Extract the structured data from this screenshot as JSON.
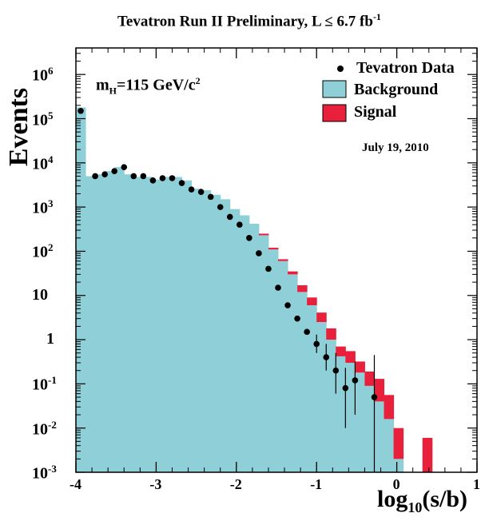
{
  "chart_data": {
    "type": "bar",
    "title_main": "Tevatron Run II Preliminary, L ≤ 6.7 fb",
    "title_sup": "-1",
    "ylabel": "Events",
    "xlabel_main": "log",
    "xlabel_sub": "10",
    "xlabel_tail": "(s/b)",
    "xlim": [
      -4,
      1
    ],
    "ylim_log10": [
      -3,
      6.6
    ],
    "log_y": true,
    "annotation": {
      "m": "m",
      "sub": "H",
      "eq": "=115 GeV/c",
      "sup": "2"
    },
    "date": "July 19, 2010",
    "legend": {
      "placement": "top-right",
      "entries": [
        {
          "label": "Tevatron Data",
          "kind": "marker"
        },
        {
          "label": "Background",
          "kind": "fill",
          "color": "#8ecfd8"
        },
        {
          "label": "Signal",
          "kind": "fill",
          "color": "#e8203c"
        }
      ]
    },
    "x_ticks": [
      -4,
      -3,
      -2,
      -1,
      0,
      1
    ],
    "x_tick_labels": [
      "-4",
      "-3",
      "-2",
      "-1",
      "0",
      "1"
    ],
    "y_ticks": [
      {
        "base": "10",
        "sup": "6",
        "value": 1000000
      },
      {
        "base": "10",
        "sup": "5",
        "value": 100000
      },
      {
        "base": "10",
        "sup": "4",
        "value": 10000
      },
      {
        "base": "10",
        "sup": "3",
        "value": 1000
      },
      {
        "base": "10",
        "sup": "2",
        "value": 100
      },
      {
        "base": "10",
        "sup": "",
        "value": 10
      },
      {
        "base": "1",
        "sup": "",
        "value": 1
      },
      {
        "base": "10",
        "sup": "-1",
        "value": 0.1
      },
      {
        "base": "10",
        "sup": "-2",
        "value": 0.01
      },
      {
        "base": "10",
        "sup": "-3",
        "value": 0.001
      }
    ],
    "bin_edges": [
      -4.0,
      -3.88,
      -3.76,
      -3.64,
      -3.52,
      -3.4,
      -3.28,
      -3.16,
      -3.04,
      -2.92,
      -2.8,
      -2.68,
      -2.56,
      -2.44,
      -2.32,
      -2.2,
      -2.08,
      -1.96,
      -1.84,
      -1.72,
      -1.6,
      -1.48,
      -1.36,
      -1.24,
      -1.12,
      -1.0,
      -0.88,
      -0.76,
      -0.64,
      -0.52,
      -0.4,
      -0.28,
      -0.16,
      -0.04,
      0.08,
      0.2,
      0.32,
      0.44,
      0.56,
      0.68
    ],
    "series": [
      {
        "name": "Background",
        "color": "#8ecfd8",
        "values": [
          180000,
          5000,
          5500,
          6500,
          8000,
          5500,
          4800,
          4800,
          4200,
          4800,
          4800,
          4000,
          2600,
          2400,
          1900,
          1500,
          900,
          650,
          420,
          230,
          110,
          60,
          30,
          12,
          6,
          2.5,
          1.0,
          0.42,
          0.3,
          0.18,
          0.09,
          0.04,
          0.016,
          0.002,
          0.001,
          0.001,
          0.001,
          0.001,
          0.001
        ]
      },
      {
        "name": "Signal",
        "color": "#e8203c",
        "values": [
          0,
          0,
          0,
          0,
          0,
          0,
          0,
          0,
          0,
          0,
          0,
          0,
          0,
          0,
          0,
          0,
          0,
          0,
          0,
          20,
          10,
          6,
          5,
          5,
          3,
          1.6,
          0.8,
          0.28,
          0.25,
          0.14,
          0.1,
          0.09,
          0.04,
          0.008,
          0,
          0,
          0.005,
          0,
          0
        ]
      }
    ],
    "data_points": {
      "name": "Tevatron Data",
      "x": [
        -3.94,
        -3.76,
        -3.64,
        -3.52,
        -3.4,
        -3.28,
        -3.16,
        -3.04,
        -2.92,
        -2.8,
        -2.68,
        -2.56,
        -2.44,
        -2.32,
        -2.2,
        -2.08,
        -1.96,
        -1.84,
        -1.72,
        -1.6,
        -1.48,
        -1.36,
        -1.24,
        -1.12,
        -1.0,
        -0.88,
        -0.76,
        -0.64,
        -0.52,
        -0.28
      ],
      "y": [
        150000,
        5000,
        5500,
        6500,
        8000,
        5000,
        5000,
        4000,
        4500,
        4500,
        3500,
        2500,
        2200,
        1700,
        1000,
        600,
        400,
        200,
        90,
        40,
        15,
        6,
        3,
        1.5,
        0.8,
        0.4,
        0.2,
        0.08,
        0.12,
        0.05
      ],
      "yerr_lo": [
        0,
        0,
        0,
        0,
        0,
        0,
        0,
        0,
        0,
        0,
        0,
        0,
        0,
        0,
        0,
        0,
        0,
        0,
        0,
        0,
        0,
        0,
        0,
        0,
        0.3,
        0.2,
        0.14,
        0.07,
        0.1,
        0.0
      ],
      "yerr_hi": [
        0,
        0,
        0,
        0,
        0,
        0,
        0,
        0,
        0,
        0,
        0,
        0,
        0,
        0,
        0,
        0,
        0,
        0,
        0,
        0,
        0,
        0,
        0,
        0,
        0.5,
        0.4,
        0.3,
        0.15,
        0.2,
        0.4
      ]
    }
  }
}
